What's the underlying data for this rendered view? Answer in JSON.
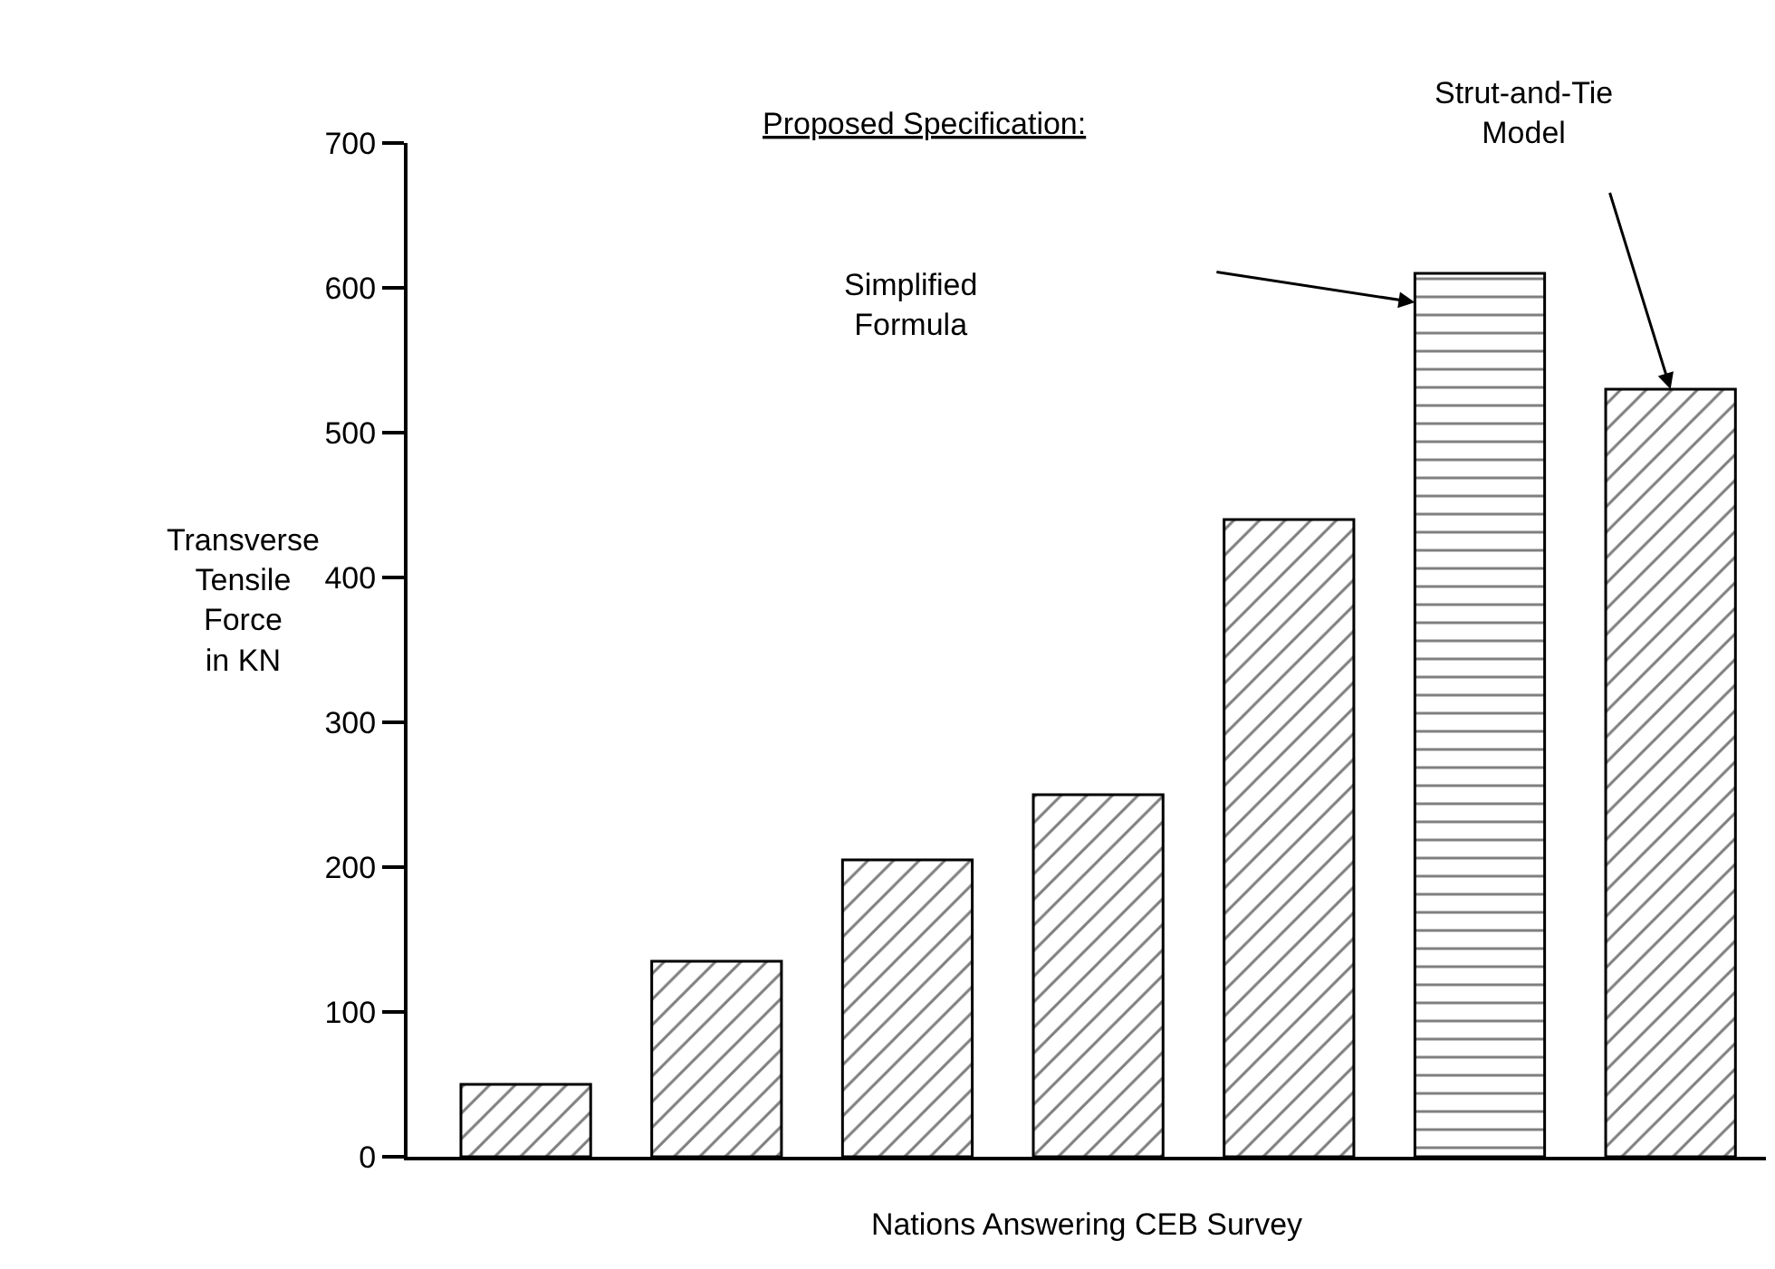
{
  "chart_data": {
    "type": "bar",
    "categories": [
      null,
      null,
      null,
      null,
      null,
      null,
      null
    ],
    "values": [
      50,
      135,
      205,
      250,
      440,
      610,
      530
    ],
    "colors": [
      "#000000",
      "#000000",
      "#000000",
      "#000000",
      "#000000",
      "#000000",
      "#000000"
    ],
    "ylim": [
      0,
      700
    ],
    "yticks": [
      0,
      100,
      200,
      300,
      400,
      500,
      600,
      700
    ],
    "xlabel": "Nations Answering CEB Survey",
    "ylabel": "Transverse\nTensile\nForce\nin KN",
    "annotations": [
      "Proposed Specification:",
      "Simplified\nFormula",
      "Strut-and-Tie\nModel"
    ],
    "tick_labels": "y"
  }
}
